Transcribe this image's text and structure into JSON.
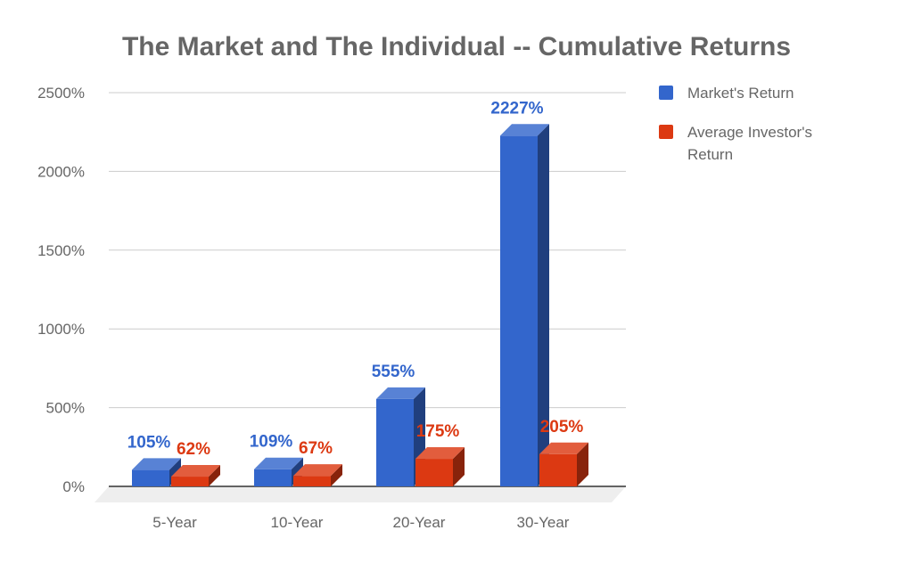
{
  "chart_data": {
    "type": "bar",
    "title": "The Market and The Individual -- Cumulative Returns",
    "categories": [
      "5-Year",
      "10-Year",
      "20-Year",
      "30-Year"
    ],
    "series": [
      {
        "name": "Market's Return",
        "values": [
          105,
          109,
          555,
          2227
        ],
        "labels": [
          "105%",
          "109%",
          "555%",
          "2227%"
        ],
        "color": "#3366cc",
        "label_color": "#3366cc"
      },
      {
        "name": "Average Investor's Return",
        "values": [
          62,
          67,
          175,
          205
        ],
        "labels": [
          "62%",
          "67%",
          "175%",
          "205%"
        ],
        "color": "#dc3912",
        "label_color": "#dc3912"
      }
    ],
    "yticks": [
      "0%",
      "500%",
      "1000%",
      "1500%",
      "2000%",
      "2500%"
    ],
    "ytick_values": [
      0,
      500,
      1000,
      1500,
      2000,
      2500
    ],
    "ylim": [
      0,
      2500
    ],
    "grid": true,
    "legend_position": "right",
    "style": "3d-bar"
  }
}
